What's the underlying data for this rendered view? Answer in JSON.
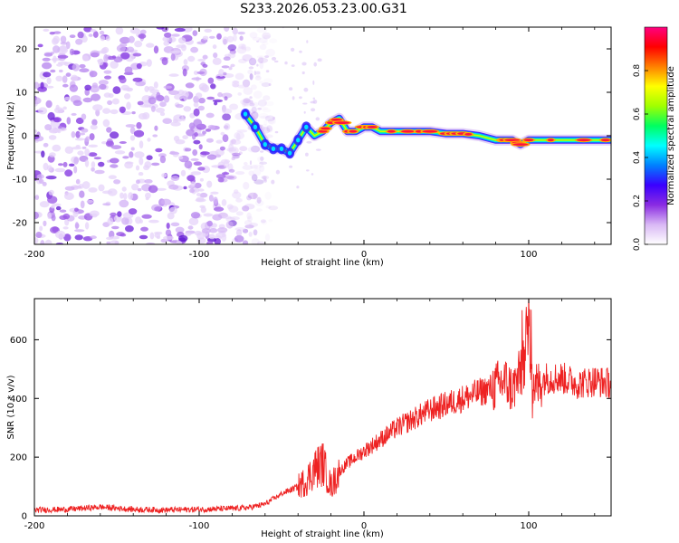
{
  "title": "S233.2026.053.23.00.G31",
  "chart_data": [
    {
      "type": "heatmap",
      "title": "S233.2026.053.23.00.G31",
      "xlabel": "Height of straight line (km)",
      "ylabel": "Frequency (Hz)",
      "xlim": [
        -200,
        150
      ],
      "ylim": [
        -25,
        25
      ],
      "x_ticks": [
        -200,
        -100,
        0,
        100
      ],
      "x_tick_labels": [
        "-200",
        "-100",
        "0",
        "100"
      ],
      "y_ticks": [
        -20,
        -10,
        0,
        10,
        20
      ],
      "y_tick_labels": [
        "-20",
        "-10",
        "0",
        "10",
        "20"
      ],
      "noise_region_x": [
        -200,
        -65
      ],
      "signal_ridge": {
        "x": [
          -72,
          -66,
          -60,
          -55,
          -50,
          -45,
          -40,
          -35,
          -30,
          -25,
          -20,
          -15,
          -10,
          -5,
          0,
          5,
          10,
          15,
          20,
          30,
          40,
          50,
          60,
          70,
          80,
          90,
          95,
          100,
          110,
          120,
          130,
          140,
          150
        ],
        "freq_hz": [
          5,
          2,
          -2,
          -3,
          -3,
          -4,
          -1,
          2,
          0,
          1,
          3,
          4,
          1,
          1,
          2,
          2,
          1,
          1,
          1,
          1,
          1,
          0.5,
          0.5,
          0,
          -1,
          -1,
          -2,
          -1,
          -1,
          -1,
          -1,
          -1,
          -1
        ]
      },
      "colorbar": {
        "label": "Normalized spectral amplitude",
        "range": [
          0,
          1
        ],
        "ticks": [
          0.0,
          0.2,
          0.4,
          0.6,
          0.8
        ],
        "tick_labels": [
          "0.0",
          "0.2",
          "0.4",
          "0.6",
          "0.8"
        ],
        "colors": [
          "#ffffff",
          "#d9b8f5",
          "#8a2be2",
          "#3a00ff",
          "#0080ff",
          "#00ffff",
          "#00ff60",
          "#a0ff00",
          "#ffff00",
          "#ff8000",
          "#ff0000",
          "#ff0080"
        ]
      }
    },
    {
      "type": "line",
      "xlabel": "Height of straight line (km)",
      "ylabel": "SNR (10 * v/v)",
      "xlim": [
        -200,
        150
      ],
      "ylim": [
        0,
        740
      ],
      "x_ticks": [
        -200,
        -100,
        0,
        100
      ],
      "x_tick_labels": [
        "-200",
        "-100",
        "0",
        "100"
      ],
      "y_ticks": [
        0,
        200,
        400,
        600
      ],
      "y_tick_labels": [
        "0",
        "200",
        "400",
        "600"
      ],
      "color": "#ee2222",
      "series": [
        {
          "name": "SNR",
          "x": [
            -200,
            -180,
            -160,
            -140,
            -120,
            -100,
            -80,
            -70,
            -60,
            -50,
            -40,
            -35,
            -30,
            -25,
            -20,
            -15,
            -10,
            -5,
            0,
            10,
            20,
            30,
            40,
            50,
            60,
            70,
            80,
            85,
            90,
            95,
            98,
            100,
            102,
            105,
            110,
            120,
            130,
            140,
            150
          ],
          "y": [
            20,
            22,
            30,
            22,
            20,
            22,
            25,
            28,
            40,
            75,
            100,
            120,
            160,
            180,
            100,
            150,
            180,
            200,
            220,
            260,
            300,
            330,
            360,
            380,
            400,
            420,
            440,
            460,
            430,
            480,
            560,
            650,
            470,
            440,
            470,
            470,
            450,
            460,
            450
          ]
        }
      ]
    }
  ]
}
